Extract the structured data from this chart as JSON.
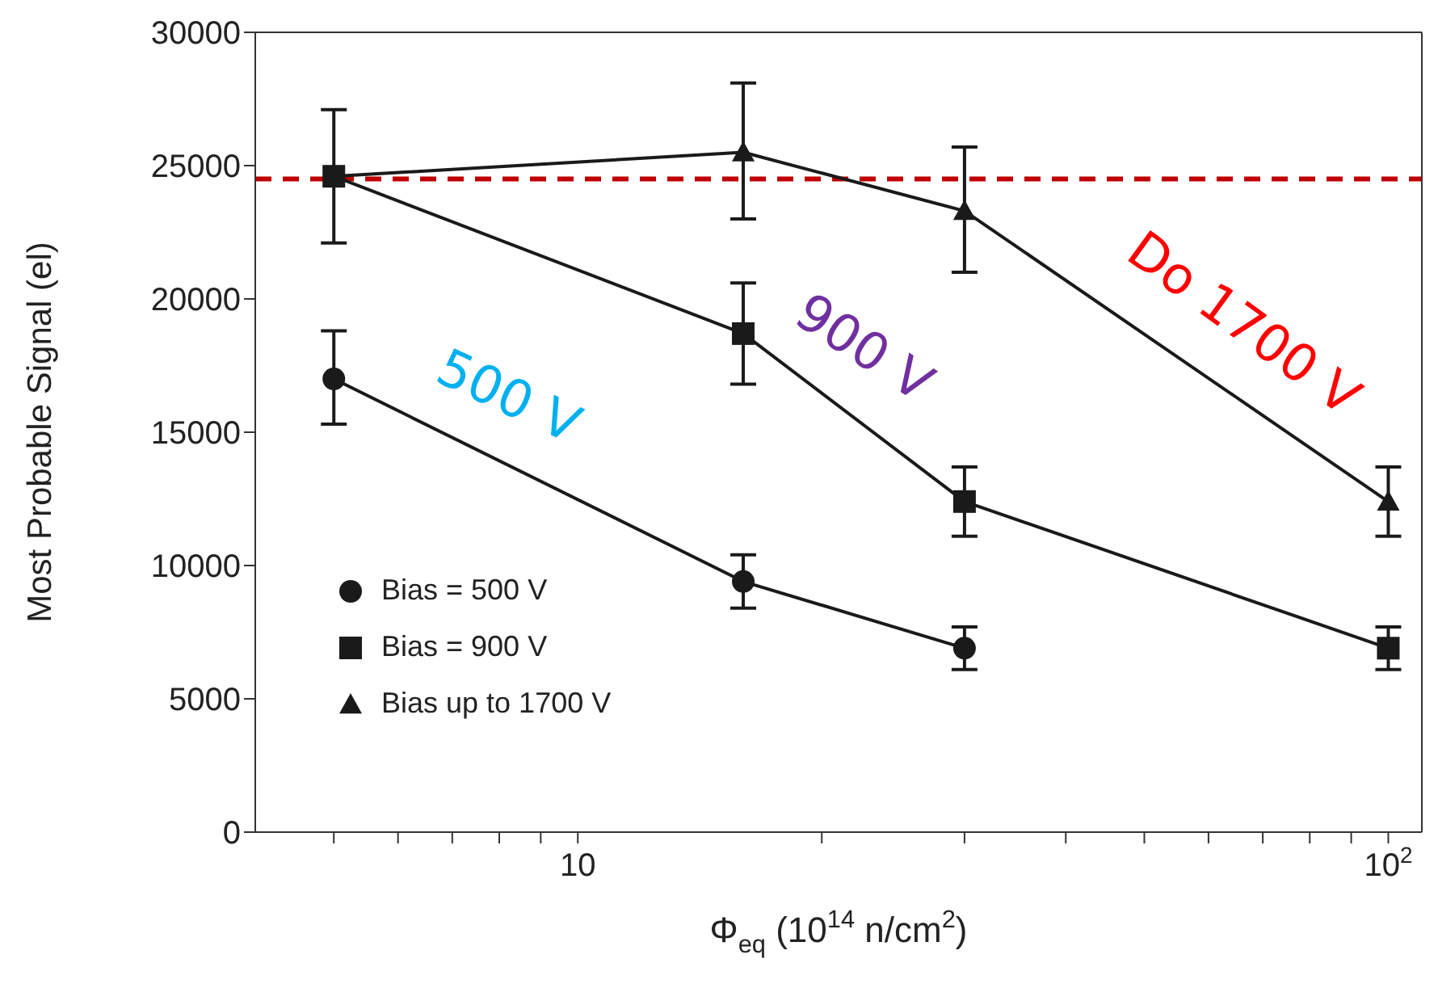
{
  "chart_data": {
    "type": "line",
    "xlabel": "Φ$_{eq}$  (10$^{14}$ n/cm$^{2}$)",
    "ylabel": "Most Probable Signal (el)",
    "log": "x",
    "xlim": [
      4,
      110
    ],
    "xticks": [
      {
        "value": 5,
        "label": null
      },
      {
        "value": 6,
        "label": null
      },
      {
        "value": 7,
        "label": null
      },
      {
        "value": 8,
        "label": null
      },
      {
        "value": 9,
        "label": null
      },
      10,
      {
        "value": 20,
        "label": null
      },
      {
        "value": 30,
        "label": null
      },
      {
        "value": 40,
        "label": null
      },
      {
        "value": 50,
        "label": null
      },
      {
        "value": 60,
        "label": null
      },
      {
        "value": 70,
        "label": null
      },
      {
        "value": 80,
        "label": null
      },
      {
        "value": 90,
        "label": null
      },
      {
        "value": 100,
        "label": "10$^{2}$"
      }
    ],
    "ylim": [
      0,
      30000
    ],
    "yticks": [
      0,
      5000,
      10000,
      15000,
      20000,
      25000,
      30000
    ],
    "grid": false,
    "legend": "bottom left",
    "line_style": "solid",
    "series": [
      {
        "name": "Bias = 500 V",
        "color": "#1a1a1a",
        "marker": "circle",
        "x": [
          5,
          16,
          30
        ],
        "values": [
          17000,
          9400,
          6900
        ],
        "errors": [
          [
            15300,
            18800
          ],
          [
            8400,
            10400
          ],
          [
            6100,
            7700
          ]
        ]
      },
      {
        "name": "Bias = 900 V",
        "color": "#1a1a1a",
        "marker": "square",
        "x": [
          5,
          16,
          30,
          100
        ],
        "values": [
          24600,
          18700,
          12400,
          6900
        ],
        "errors": [
          [
            22100,
            27100
          ],
          [
            16800,
            20600
          ],
          [
            11100,
            13700
          ],
          [
            6100,
            7700
          ]
        ]
      },
      {
        "name": "Bias up to 1700 V",
        "color": "#1a1a1a",
        "marker": "triangle",
        "x": [
          5,
          16,
          30,
          100
        ],
        "values": [
          24600,
          25500,
          23300,
          12400
        ],
        "errors": [
          null,
          [
            23000,
            28100
          ],
          [
            21000,
            25700
          ],
          [
            11100,
            13700
          ]
        ]
      }
    ],
    "ref_lines": [
      {
        "axis": "y",
        "value": 24500,
        "color": "#c00000",
        "line_style": "dashed"
      }
    ],
    "annotations": [
      "500 V",
      "900 V",
      "Do 1700 V"
    ]
  }
}
